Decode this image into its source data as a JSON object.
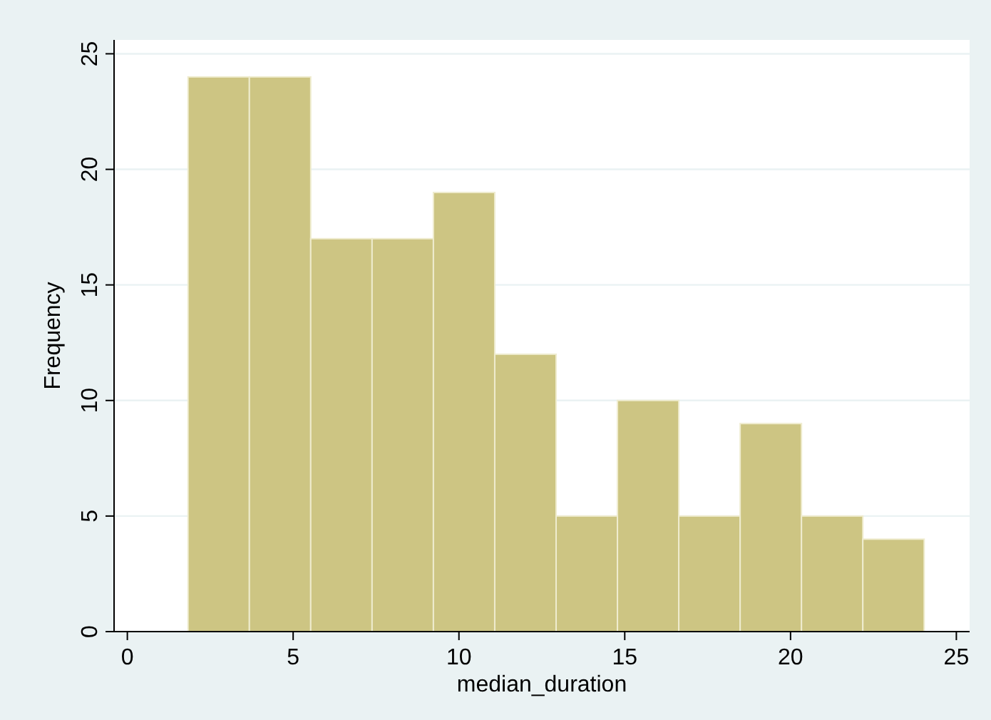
{
  "chart_data": {
    "type": "histogram",
    "xlabel": "median_duration",
    "ylabel": "Frequency",
    "bins": [
      1.83,
      3.68,
      5.53,
      7.38,
      9.23,
      11.08,
      12.93,
      14.78,
      16.63,
      18.48,
      20.33,
      22.18,
      24.03
    ],
    "values": [
      24,
      24,
      17,
      17,
      19,
      12,
      5,
      10,
      5,
      9,
      5,
      4
    ],
    "color": "#cdc583",
    "xlim": [
      -0.4,
      25.4
    ],
    "xticks": [
      0,
      5,
      10,
      15,
      20,
      25
    ],
    "ylim": [
      0,
      25.6
    ],
    "yticks": [
      0,
      5,
      10,
      15,
      20,
      25
    ],
    "grid": "y"
  }
}
